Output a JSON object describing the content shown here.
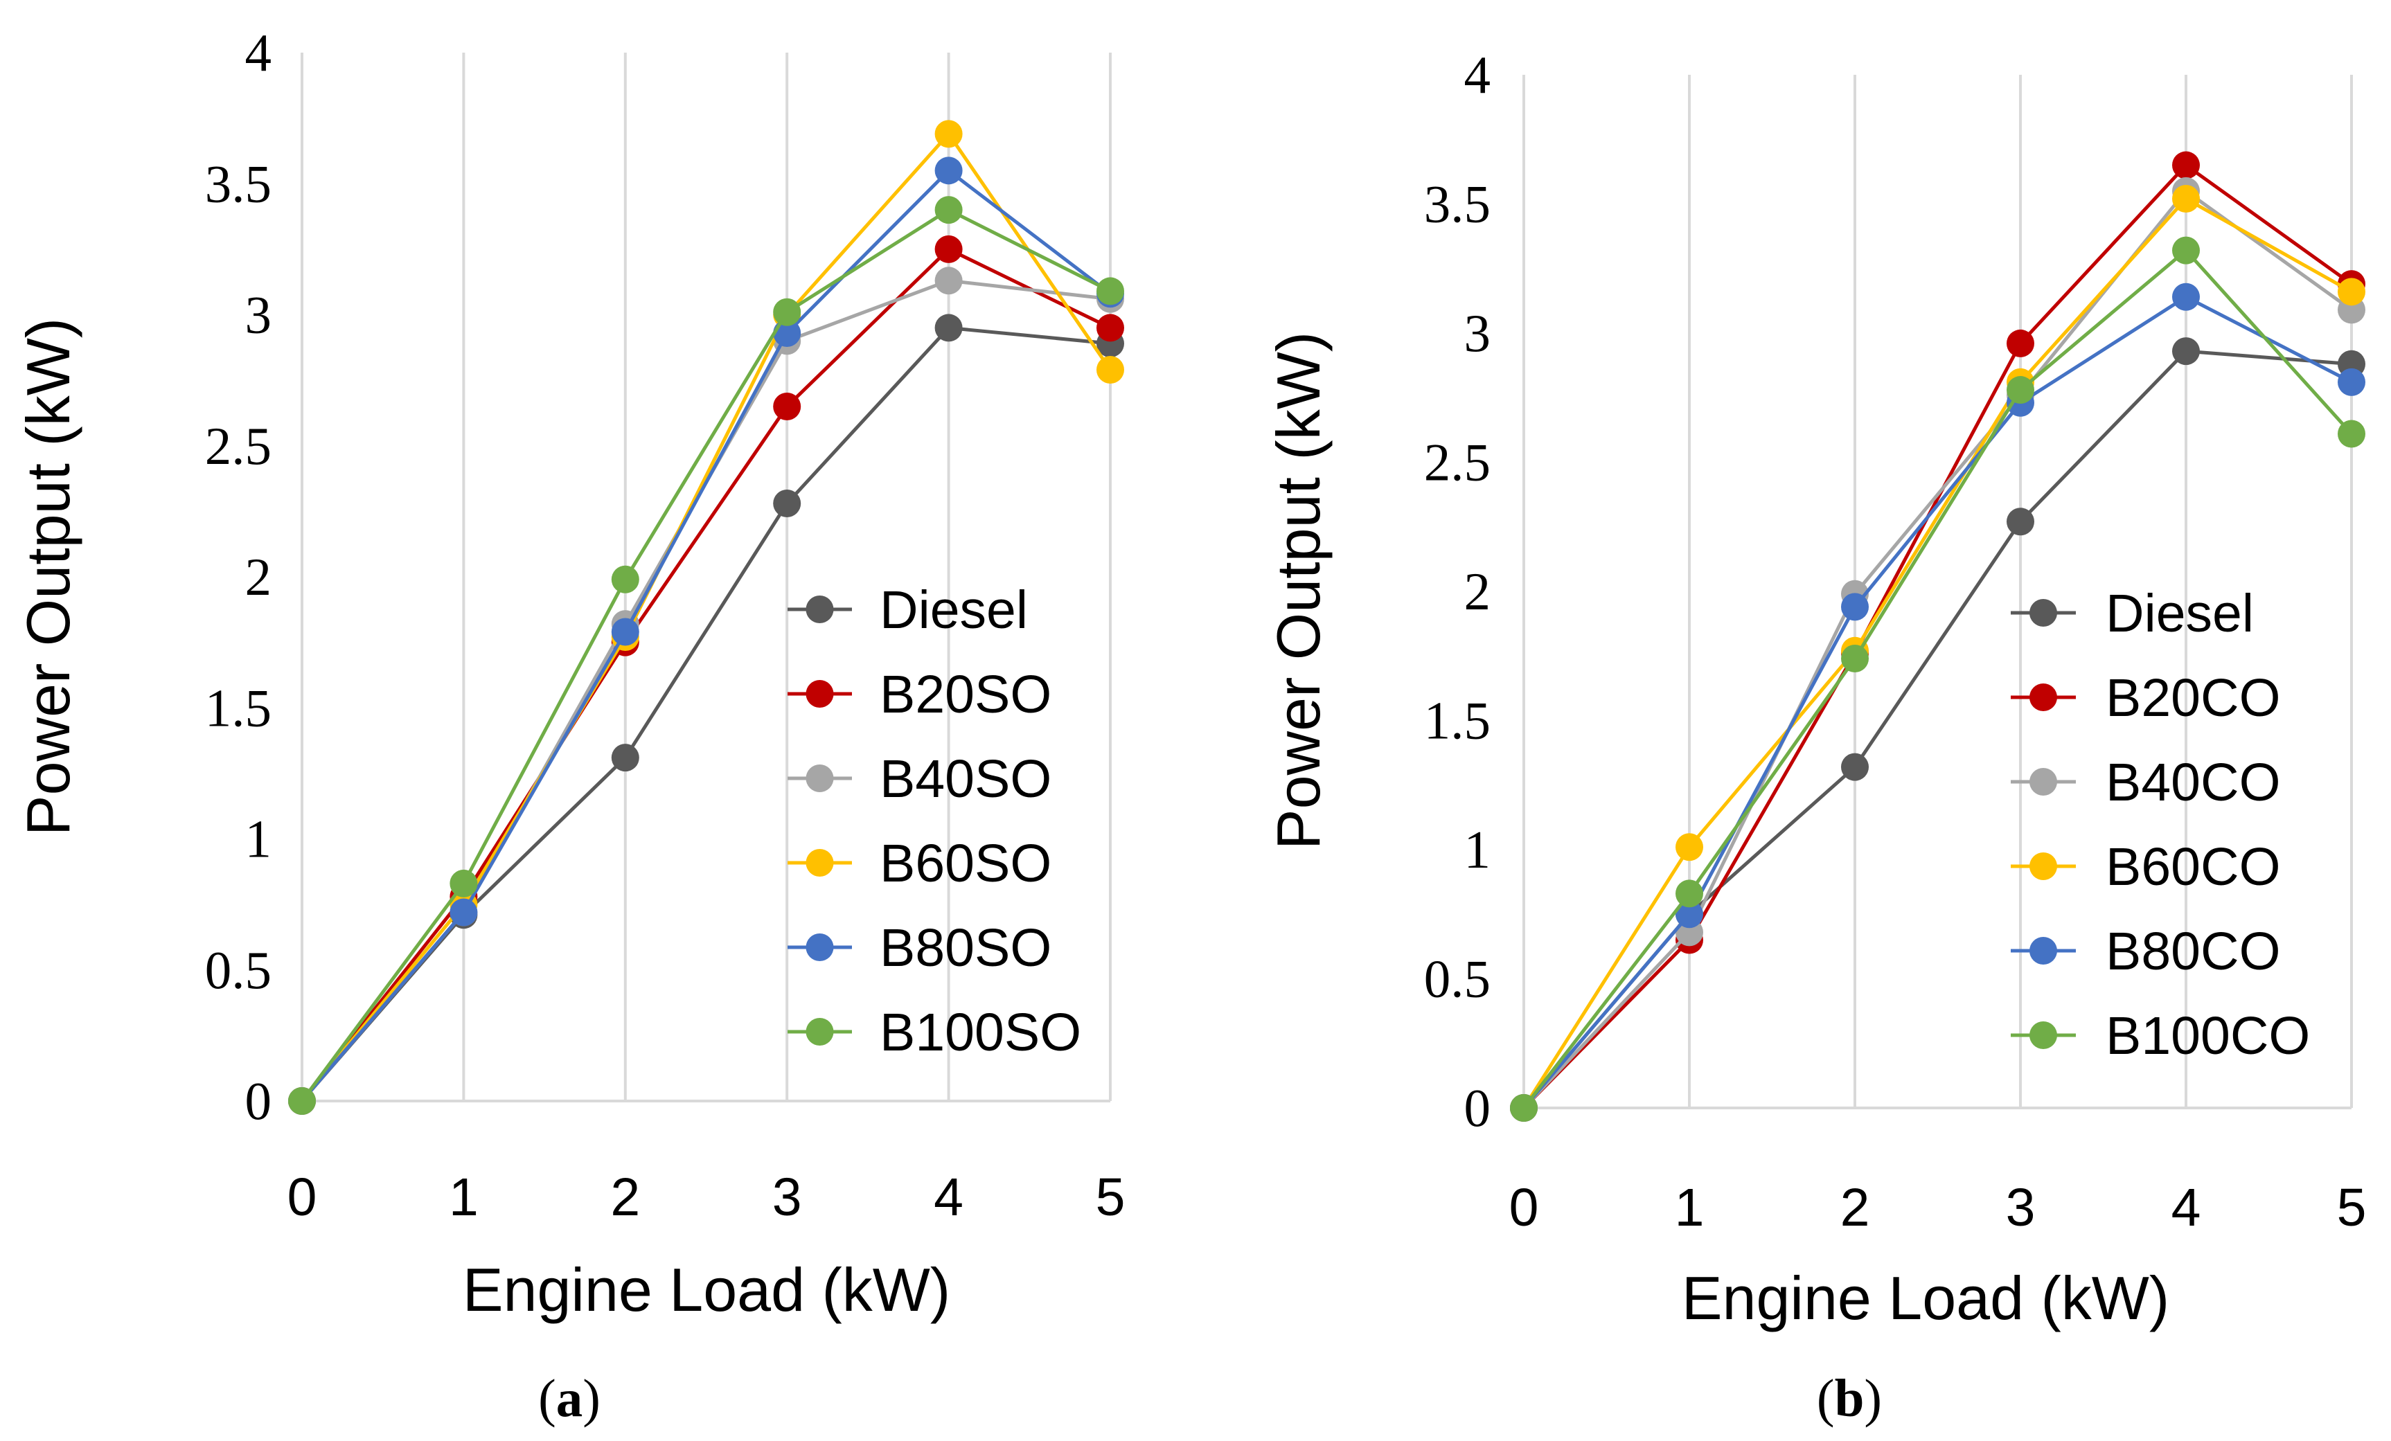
{
  "chart_data": [
    {
      "type": "line",
      "panel": "a",
      "xlabel": "Engine Load (kW)",
      "ylabel": "Power Output (kW)",
      "x": [
        0,
        1,
        2,
        3,
        4,
        5
      ],
      "xlim": [
        0,
        5
      ],
      "ylim": [
        0,
        4
      ],
      "yticks": [
        "0",
        "0.5",
        "1",
        "1.5",
        "2",
        "2.5",
        "3",
        "3.5",
        "4"
      ],
      "xticks": [
        "0",
        "1",
        "2",
        "3",
        "4",
        "5"
      ],
      "grid": "vertical",
      "legend_position": "center-right",
      "caption_open": "(",
      "caption_letter": "a",
      "caption_close": ")",
      "series": [
        {
          "name": "Diesel",
          "color": "#595959",
          "values": [
            0,
            0.71,
            1.31,
            2.28,
            2.95,
            2.89
          ]
        },
        {
          "name": "B20SO",
          "color": "#c00000",
          "values": [
            0,
            0.78,
            1.75,
            2.65,
            3.25,
            2.95
          ]
        },
        {
          "name": "B40SO",
          "color": "#a6a6a6",
          "values": [
            0,
            0.72,
            1.82,
            2.9,
            3.13,
            3.06
          ]
        },
        {
          "name": "B60SO",
          "color": "#ffc000",
          "values": [
            0,
            0.75,
            1.77,
            3.0,
            3.69,
            2.79
          ]
        },
        {
          "name": "B80SO",
          "color": "#4472c4",
          "values": [
            0,
            0.72,
            1.79,
            2.93,
            3.55,
            3.08
          ]
        },
        {
          "name": "B100SO",
          "color": "#70ad47",
          "values": [
            0,
            0.83,
            1.99,
            3.01,
            3.4,
            3.09
          ]
        }
      ]
    },
    {
      "type": "line",
      "panel": "b",
      "xlabel": "Engine Load (kW)",
      "ylabel": "Power Output (kW)",
      "x": [
        0,
        1,
        2,
        3,
        4,
        5
      ],
      "xlim": [
        0,
        5
      ],
      "ylim": [
        0,
        4
      ],
      "yticks": [
        "0",
        "0.5",
        "1",
        "1.5",
        "2",
        "2.5",
        "3",
        "3.5",
        "4"
      ],
      "xticks": [
        "0",
        "1",
        "2",
        "3",
        "4",
        "5"
      ],
      "grid": "vertical",
      "legend_position": "center-right",
      "caption_open": "(",
      "caption_letter": "b",
      "caption_close": ")",
      "series": [
        {
          "name": "Diesel",
          "color": "#595959",
          "values": [
            0,
            0.75,
            1.32,
            2.27,
            2.93,
            2.88
          ]
        },
        {
          "name": "B20CO",
          "color": "#c00000",
          "values": [
            0,
            0.65,
            1.76,
            2.96,
            3.65,
            3.19
          ]
        },
        {
          "name": "B40CO",
          "color": "#a6a6a6",
          "values": [
            0,
            0.68,
            1.99,
            2.76,
            3.55,
            3.09
          ]
        },
        {
          "name": "B60CO",
          "color": "#ffc000",
          "values": [
            0,
            1.01,
            1.77,
            2.81,
            3.52,
            3.16
          ]
        },
        {
          "name": "B80CO",
          "color": "#4472c4",
          "values": [
            0,
            0.75,
            1.94,
            2.73,
            3.14,
            2.81
          ]
        },
        {
          "name": "B100CO",
          "color": "#70ad47",
          "values": [
            0,
            0.83,
            1.74,
            2.78,
            3.32,
            2.61
          ]
        }
      ]
    }
  ]
}
